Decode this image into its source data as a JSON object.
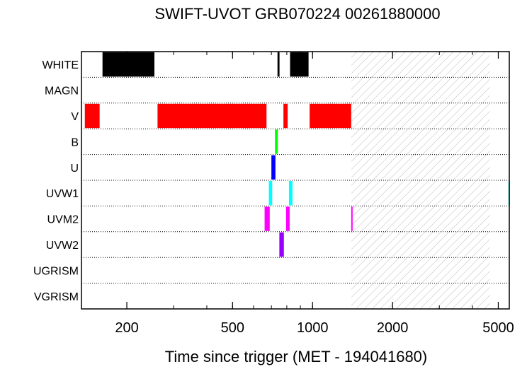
{
  "chart_data": {
    "type": "timeline",
    "title": "SWIFT-UVOT GRB070224 00261880000",
    "xlabel": "Time since trigger (MET - 194041680)",
    "xscale": "log",
    "xlim": [
      135,
      5500
    ],
    "xticks": [
      {
        "value": 200,
        "label": "200"
      },
      {
        "value": 500,
        "label": "500"
      },
      {
        "value": 1000,
        "label": "1000"
      },
      {
        "value": 2000,
        "label": "2000"
      },
      {
        "value": 5000,
        "label": "5000"
      }
    ],
    "shaded_interval": [
      1400,
      4650
    ],
    "filters": [
      {
        "name": "WHITE",
        "color": "#000000",
        "intervals": [
          [
            162,
            254
          ],
          [
            738,
            751
          ],
          [
            823,
            966
          ],
          [
            867,
            870
          ]
        ]
      },
      {
        "name": "MAGN",
        "color": "#000000",
        "intervals": []
      },
      {
        "name": "V",
        "color": "#ff0000",
        "intervals": [
          [
            139,
            158
          ],
          [
            261,
            671
          ],
          [
            777,
            806
          ],
          [
            975,
            1398
          ]
        ]
      },
      {
        "name": "B",
        "color": "#00ff00",
        "intervals": [
          [
            722,
            740
          ]
        ]
      },
      {
        "name": "U",
        "color": "#0000ff",
        "intervals": [
          [
            700,
            725
          ]
        ]
      },
      {
        "name": "UVW1",
        "color": "#00ffff",
        "intervals": [
          [
            685,
            705
          ],
          [
            815,
            840
          ],
          [
            5460,
            5530
          ]
        ]
      },
      {
        "name": "UVM2",
        "color": "#ff00ff",
        "intervals": [
          [
            660,
            690
          ],
          [
            795,
            820
          ],
          [
            1398,
            1414
          ]
        ]
      },
      {
        "name": "UVW2",
        "color": "#9900ff",
        "intervals": [
          [
            750,
            780
          ]
        ]
      },
      {
        "name": "UGRISM",
        "color": "#000000",
        "intervals": []
      },
      {
        "name": "VGRISM",
        "color": "#000000",
        "intervals": []
      }
    ]
  }
}
